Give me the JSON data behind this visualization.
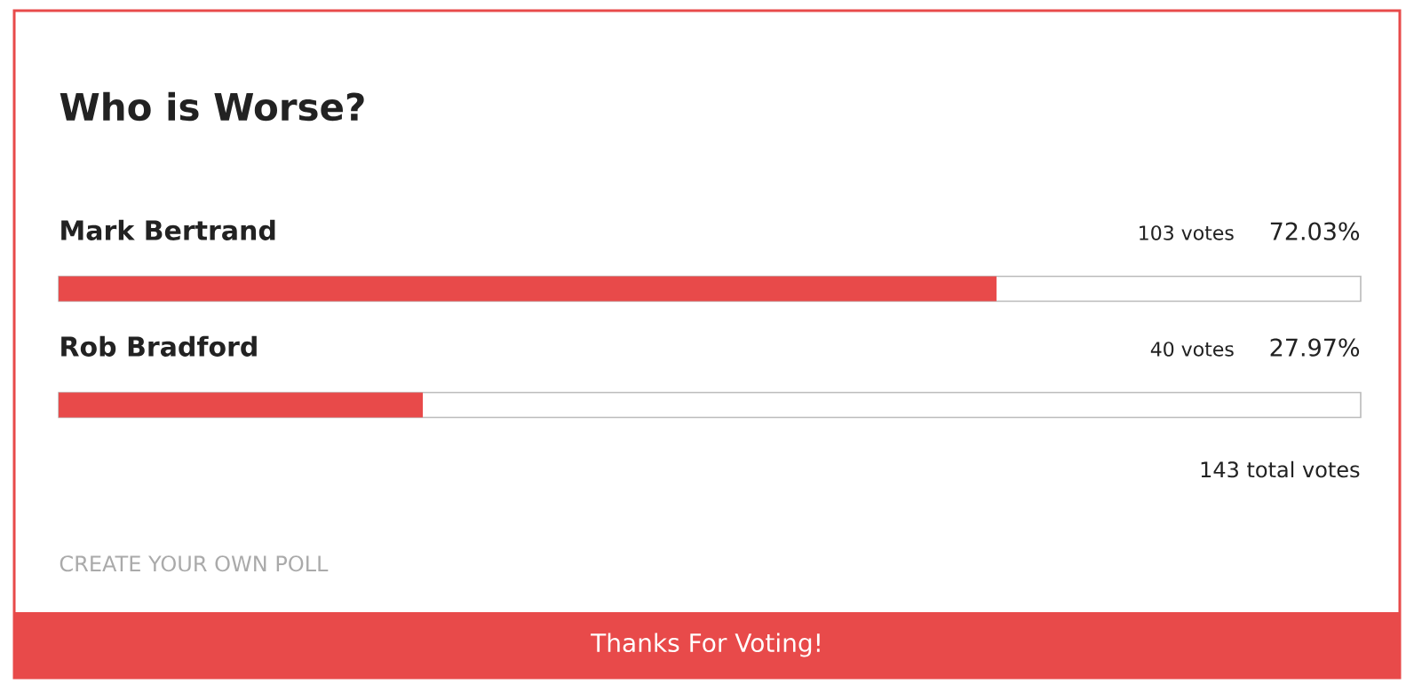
{
  "chart_data": {
    "type": "bar",
    "orientation": "horizontal",
    "title": "Who is Worse?",
    "categories": [
      "Mark Bertrand",
      "Rob Bradford"
    ],
    "values": [
      72.03,
      27.97
    ],
    "value_labels": [
      "72.03%",
      "27.97%"
    ],
    "color": "#e84a4a",
    "xlim": [
      0,
      100
    ],
    "tick_labels": "y",
    "annotations": [
      "103 votes",
      "40 votes",
      "143 total votes",
      "CREATE YOUR OWN POLL",
      "Thanks For Voting!"
    ]
  }
}
